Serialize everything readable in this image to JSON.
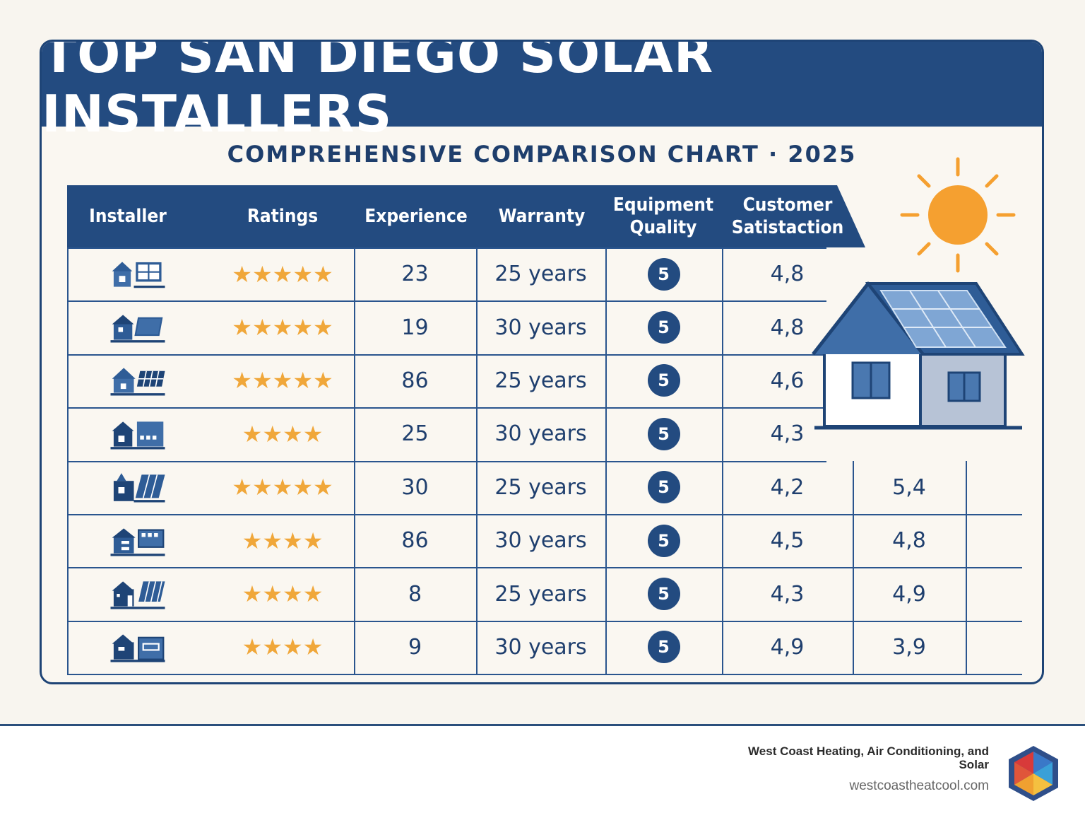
{
  "title": "TOP SAN DIEGO SOLAR INSTALLERS",
  "subtitle": "COMPREHENSIVE COMPARISON CHART · 2025",
  "columns": [
    "Installer",
    "Ratings",
    "Experience",
    "Warranty",
    "Equipment Quality",
    "Customer Satistaction"
  ],
  "rows": [
    {
      "stars": "★★★★★",
      "experience": "23",
      "warranty": "25 years",
      "equipment": "5",
      "satisfaction": "4,8",
      "extra": ""
    },
    {
      "stars": "★★★★★",
      "experience": "19",
      "warranty": "30 years",
      "equipment": "5",
      "satisfaction": "4,8",
      "extra": ""
    },
    {
      "stars": "★★★★★",
      "experience": "86",
      "warranty": "25 years",
      "equipment": "5",
      "satisfaction": "4,6",
      "extra": ""
    },
    {
      "stars": "★★★★",
      "experience": "25",
      "warranty": "30 years",
      "equipment": "5",
      "satisfaction": "4,3",
      "extra": ""
    },
    {
      "stars": "★★★★★",
      "experience": "30",
      "warranty": "25 years",
      "equipment": "5",
      "satisfaction": "4,2",
      "extra": "5,4"
    },
    {
      "stars": "★★★★",
      "experience": "86",
      "warranty": "30 years",
      "equipment": "5",
      "satisfaction": "4,5",
      "extra": "4,8"
    },
    {
      "stars": "★★★★",
      "experience": "8",
      "warranty": "25 years",
      "equipment": "5",
      "satisfaction": "4,3",
      "extra": "4,9"
    },
    {
      "stars": "★★★★",
      "experience": "9",
      "warranty": "30 years",
      "equipment": "5",
      "satisfaction": "4,9",
      "extra": "3,9"
    }
  ],
  "footer": {
    "company": "West Coast Heating, Air Conditioning, and Solar",
    "url": "westcoastheatcool.com"
  },
  "colors": {
    "navy": "#234b80",
    "star": "#f0a73a",
    "sun": "#f5a030"
  }
}
